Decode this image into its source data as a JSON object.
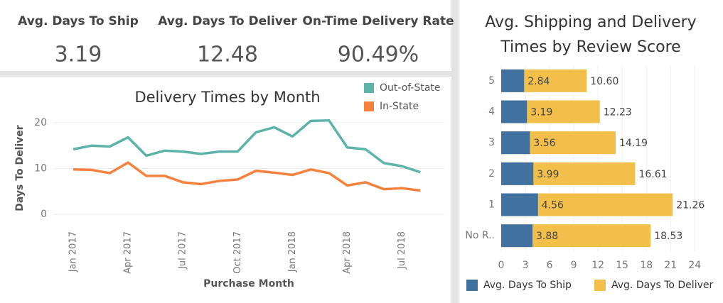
{
  "kpis": [
    {
      "label": "Avg. Days To Ship",
      "value": "3.19"
    },
    {
      "label": "Avg. Days To Deliver",
      "value": "12.48"
    },
    {
      "label": "On-Time Delivery Rate",
      "value": "90.49%"
    }
  ],
  "chart_data": [
    {
      "type": "line",
      "title": "Delivery Times by Month",
      "x_label": "Purchase Month",
      "y_label": "Days To Deliver",
      "categories": [
        "Jan 2017",
        null,
        null,
        "Apr 2017",
        null,
        null,
        "Jul 2017",
        null,
        null,
        "Oct 2017",
        null,
        null,
        "Jan 2018",
        null,
        null,
        "Apr 2018",
        null,
        null,
        "Jul 2018",
        null
      ],
      "series": [
        {
          "name": "Out-of-State",
          "color": "#5cb3a8",
          "values": [
            14.2,
            15.0,
            14.8,
            16.8,
            12.8,
            13.9,
            13.7,
            13.2,
            13.7,
            13.7,
            17.9,
            19.0,
            17.0,
            20.4,
            20.5,
            14.6,
            14.2,
            11.2,
            10.5,
            9.2
          ]
        },
        {
          "name": "In-State",
          "color": "#f5813c",
          "values": [
            9.8,
            9.7,
            9.0,
            11.3,
            8.4,
            8.4,
            7.0,
            6.6,
            7.3,
            7.6,
            9.5,
            9.1,
            8.6,
            9.8,
            9.0,
            6.3,
            7.0,
            5.5,
            5.7,
            5.2
          ]
        }
      ],
      "ylim": [
        -2,
        22
      ],
      "yticks": [
        0,
        10,
        20
      ],
      "grid": true,
      "legend": "top-right"
    },
    {
      "type": "hbar",
      "title": "Avg. Shipping and Delivery Times by Review Score",
      "categories": [
        "5",
        "4",
        "3",
        "2",
        "1",
        "No R.."
      ],
      "series": [
        {
          "name": "Avg. Days To Ship",
          "color": "#41719e",
          "values": [
            2.84,
            3.19,
            3.56,
            3.99,
            4.56,
            3.88
          ]
        },
        {
          "name": "Avg. Days To Deliver",
          "color": "#f2c04a",
          "values": [
            10.6,
            12.23,
            14.19,
            16.61,
            21.26,
            18.53
          ],
          "value_labels": [
            "10.60",
            "12.23",
            "14.19",
            "16.61",
            "21.26",
            "18.53"
          ]
        }
      ],
      "stacked": false,
      "xlim": [
        0,
        26
      ],
      "xticks": [
        0,
        3,
        6,
        9,
        12,
        15,
        18,
        21,
        24
      ],
      "grid": true,
      "legend": "bottom"
    }
  ]
}
